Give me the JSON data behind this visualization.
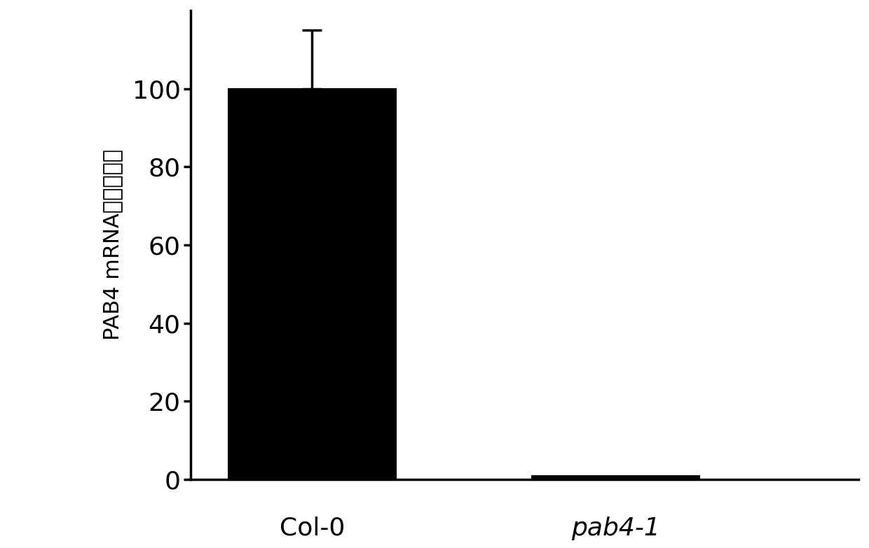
{
  "categories": [
    "Col-0",
    "pab4-1"
  ],
  "values": [
    100,
    0.8
  ],
  "errors": [
    15,
    0.0
  ],
  "bar_colors": [
    "#000000",
    "#000000"
  ],
  "bar_width": 0.55,
  "x_positions": [
    0.4,
    1.4
  ],
  "xlim": [
    0.0,
    2.2
  ],
  "ylim": [
    0,
    120
  ],
  "yticks": [
    0,
    20,
    40,
    60,
    80,
    100
  ],
  "tick_fontsize": 26,
  "xlabel_fontsize": 26,
  "ylabel_fontsize": 22,
  "background_color": "#ffffff",
  "bar_edge_color": "#000000",
  "error_bar_color": "#000000",
  "error_capsize": 10,
  "error_linewidth": 2.5
}
